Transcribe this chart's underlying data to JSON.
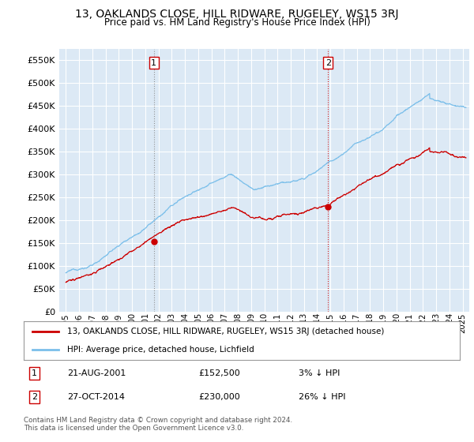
{
  "title": "13, OAKLANDS CLOSE, HILL RIDWARE, RUGELEY, WS15 3RJ",
  "subtitle": "Price paid vs. HM Land Registry's House Price Index (HPI)",
  "legend_line1": "13, OAKLANDS CLOSE, HILL RIDWARE, RUGELEY, WS15 3RJ (detached house)",
  "legend_line2": "HPI: Average price, detached house, Lichfield",
  "point1_date": "21-AUG-2001",
  "point1_price": "£152,500",
  "point1_hpi": "3% ↓ HPI",
  "point2_date": "27-OCT-2014",
  "point2_price": "£230,000",
  "point2_hpi": "26% ↓ HPI",
  "footer": "Contains HM Land Registry data © Crown copyright and database right 2024.\nThis data is licensed under the Open Government Licence v3.0.",
  "hpi_color": "#7bbfea",
  "price_color": "#cc0000",
  "vline_color": "#cc0000",
  "background_color": "#ffffff",
  "plot_bg_color": "#dce9f5",
  "grid_color": "#ffffff",
  "ylim": [
    0,
    575000
  ],
  "yticks": [
    0,
    50000,
    100000,
    150000,
    200000,
    250000,
    300000,
    350000,
    400000,
    450000,
    500000,
    550000
  ],
  "point1_x": 2001.646,
  "point1_y": 152500,
  "point2_x": 2014.826,
  "point2_y": 230000,
  "vline1_x": 2001.646,
  "vline2_x": 2014.826,
  "xlim_left": 1994.5,
  "xlim_right": 2025.5
}
